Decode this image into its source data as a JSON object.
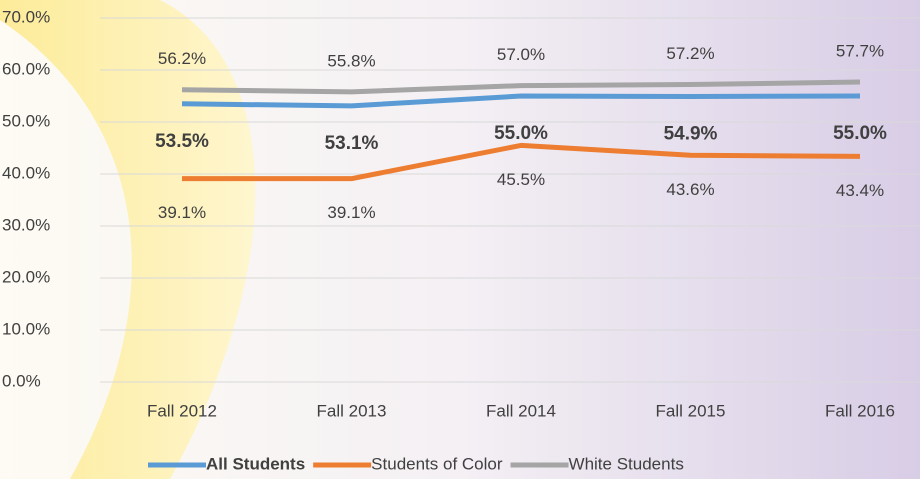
{
  "chart_data": {
    "type": "line",
    "categories": [
      "Fall 2012",
      "Fall 2013",
      "Fall 2014",
      "Fall 2015",
      "Fall 2016"
    ],
    "series": [
      {
        "name": "All Students",
        "color": "#5b9bd5",
        "values": [
          53.5,
          53.1,
          55.0,
          54.9,
          55.0
        ],
        "value_labels": [
          "53.5%",
          "53.1%",
          "55.0%",
          "54.9%",
          "55.0%"
        ]
      },
      {
        "name": "Students of Color",
        "color": "#ed7d31",
        "values": [
          39.1,
          39.1,
          45.5,
          43.6,
          43.4
        ],
        "value_labels": [
          "39.1%",
          "39.1%",
          "45.5%",
          "43.6%",
          "43.4%"
        ]
      },
      {
        "name": "White Students",
        "color": "#a5a5a5",
        "values": [
          56.2,
          55.8,
          57.0,
          57.2,
          57.7
        ],
        "value_labels": [
          "56.2%",
          "55.8%",
          "57.0%",
          "57.2%",
          "57.7%"
        ]
      }
    ],
    "ylim": [
      0,
      70
    ],
    "yticks": [
      {
        "value": 0,
        "label": "0.0%"
      },
      {
        "value": 10,
        "label": "10.0%"
      },
      {
        "value": 20,
        "label": "20.0%"
      },
      {
        "value": 30,
        "label": "30.0%"
      },
      {
        "value": 40,
        "label": "40.0%"
      },
      {
        "value": 50,
        "label": "50.0%"
      },
      {
        "value": 60,
        "label": "60.0%"
      },
      {
        "value": 70,
        "label": "70.0%"
      }
    ],
    "grid": true,
    "legend": "bottom"
  }
}
